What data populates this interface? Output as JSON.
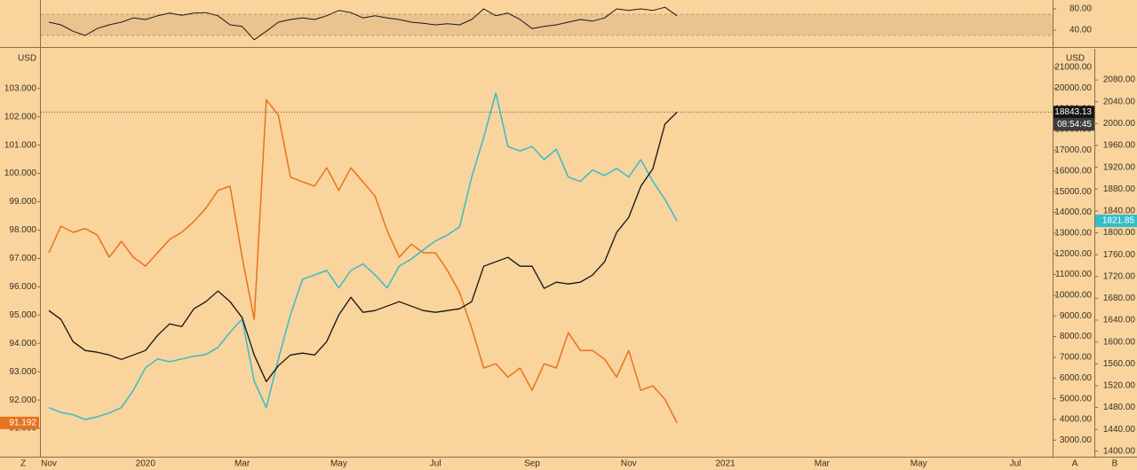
{
  "chart_data": [
    {
      "type": "line",
      "ylim": [
        10,
        96.7
      ],
      "yticks": [
        {
          "value": 40,
          "label": "40.00"
        },
        {
          "value": 80,
          "label": "80.00"
        }
      ],
      "band": [
        30,
        70
      ],
      "color": "#1a1a1a",
      "values": [
        55,
        50,
        38,
        30,
        43,
        50,
        55,
        63,
        60,
        67,
        72,
        68,
        72,
        73,
        67,
        50,
        47,
        22,
        38,
        55,
        60,
        63,
        60,
        67,
        77,
        73,
        63,
        67,
        63,
        60,
        55,
        53,
        50,
        52,
        50,
        60,
        80,
        67,
        72,
        60,
        43,
        47,
        50,
        55,
        60,
        57,
        63,
        80,
        77,
        80,
        77,
        83,
        67,
        null,
        null,
        null,
        null,
        null,
        null,
        null,
        null,
        null,
        null,
        null,
        null,
        null,
        null,
        null,
        null,
        null,
        null,
        null,
        null,
        null,
        null,
        null,
        null,
        null,
        null,
        null,
        null,
        null
      ]
    },
    {
      "type": "line",
      "left_unit": "USD",
      "right_unit": "USD",
      "countdown": "08:54:45",
      "categories": [
        "Nov",
        null,
        null,
        null,
        null,
        null,
        null,
        null,
        "2020",
        null,
        null,
        null,
        null,
        null,
        null,
        null,
        "Mar",
        null,
        null,
        null,
        null,
        null,
        null,
        null,
        "May",
        null,
        null,
        null,
        null,
        null,
        null,
        null,
        "Jul",
        null,
        null,
        null,
        null,
        null,
        null,
        null,
        "Sep",
        null,
        null,
        null,
        null,
        null,
        null,
        null,
        "Nov",
        null,
        null,
        null,
        null,
        null,
        null,
        null,
        "2021",
        null,
        null,
        null,
        null,
        null,
        null,
        null,
        "Mar",
        null,
        null,
        null,
        null,
        null,
        null,
        null,
        "May",
        null,
        null,
        null,
        null,
        null,
        null,
        null,
        "Jul",
        null
      ],
      "ylim": [
        90,
        104.4
      ],
      "yticks": [
        {
          "value": 91,
          "label": "91.000"
        },
        {
          "value": 92,
          "label": "92.000"
        },
        {
          "value": 93,
          "label": "93.000"
        },
        {
          "value": 94,
          "label": "94.000"
        },
        {
          "value": 95,
          "label": "95.000"
        },
        {
          "value": 96,
          "label": "96.000"
        },
        {
          "value": 97,
          "label": "97.000"
        },
        {
          "value": 98,
          "label": "98.000"
        },
        {
          "value": 99,
          "label": "99.000"
        },
        {
          "value": 100,
          "label": "100.000"
        },
        {
          "value": 101,
          "label": "101.000"
        },
        {
          "value": 102,
          "label": "102.000"
        },
        {
          "value": 103,
          "label": "103.000"
        }
      ],
      "y2lim": [
        2200,
        21900
      ],
      "y2ticks": [
        {
          "value": 3000,
          "label": "3000.00"
        },
        {
          "value": 4000,
          "label": "4000.00"
        },
        {
          "value": 5000,
          "label": "5000.00"
        },
        {
          "value": 6000,
          "label": "6000.00"
        },
        {
          "value": 7000,
          "label": "7000.00"
        },
        {
          "value": 8000,
          "label": "8000.00"
        },
        {
          "value": 9000,
          "label": "9000.00"
        },
        {
          "value": 10000,
          "label": "10000.00"
        },
        {
          "value": 11000,
          "label": "11000.00"
        },
        {
          "value": 12000,
          "label": "12000.00"
        },
        {
          "value": 13000,
          "label": "13000.00"
        },
        {
          "value": 14000,
          "label": "14000.00"
        },
        {
          "value": 15000,
          "label": "15000.00"
        },
        {
          "value": 16000,
          "label": "16000.00"
        },
        {
          "value": 17000,
          "label": "17000.00"
        },
        {
          "value": 18000,
          "label": "18000.00"
        },
        {
          "value": 19000,
          "label": "19000.00"
        },
        {
          "value": 20000,
          "label": "20000.00"
        },
        {
          "value": 21000,
          "label": "21000.00"
        }
      ],
      "y3lim": [
        1390,
        2137
      ],
      "y3ticks": [
        {
          "value": 1400,
          "label": "1400.00"
        },
        {
          "value": 1440,
          "label": "1440.00"
        },
        {
          "value": 1480,
          "label": "1480.00"
        },
        {
          "value": 1520,
          "label": "1520.00"
        },
        {
          "value": 1560,
          "label": "1560.00"
        },
        {
          "value": 1600,
          "label": "1600.00"
        },
        {
          "value": 1640,
          "label": "1640.00"
        },
        {
          "value": 1680,
          "label": "1680.00"
        },
        {
          "value": 1720,
          "label": "1720.00"
        },
        {
          "value": 1760,
          "label": "1760.00"
        },
        {
          "value": 1800,
          "label": "1800.00"
        },
        {
          "value": 1840,
          "label": "1840.00"
        },
        {
          "value": 1880,
          "label": "1880.00"
        },
        {
          "value": 1920,
          "label": "1920.00"
        },
        {
          "value": 1960,
          "label": "1960.00"
        },
        {
          "value": 2000,
          "label": "2000.00"
        },
        {
          "value": 2040,
          "label": "2040.00"
        },
        {
          "value": 2080,
          "label": "2080.00"
        }
      ],
      "series": [
        {
          "color": "#e8721d",
          "axis": "y",
          "values": [
            97.2,
            98.14,
            97.92,
            98.05,
            97.83,
            97.04,
            97.6,
            97.04,
            96.73,
            97.2,
            97.67,
            97.92,
            98.3,
            98.77,
            99.4,
            99.55,
            97.04,
            94.85,
            102.6,
            102.06,
            99.87,
            99.7,
            99.55,
            100.2,
            99.4,
            100.2,
            99.7,
            99.2,
            97.98,
            97.04,
            97.5,
            97.2,
            97.2,
            96.57,
            95.8,
            94.54,
            93.13,
            93.28,
            92.81,
            93.13,
            92.34,
            93.28,
            93.13,
            94.38,
            93.75,
            93.75,
            93.44,
            92.81,
            93.75,
            92.34,
            92.5,
            92.03,
            91.192,
            null,
            null,
            null,
            null,
            null,
            null,
            null,
            null,
            null,
            null,
            null,
            null,
            null,
            null,
            null,
            null,
            null,
            null,
            null,
            null,
            null,
            null,
            null,
            null,
            null,
            null,
            null,
            null,
            null
          ]
        },
        {
          "color": "#37bcc8",
          "axis": "y3",
          "values": [
            1480,
            1471,
            1467,
            1458,
            1463,
            1470,
            1480,
            1512,
            1553,
            1569,
            1564,
            1569,
            1574,
            1577,
            1590,
            1618,
            1642,
            1528,
            1480,
            1569,
            1650,
            1715,
            1723,
            1731,
            1699,
            1731,
            1743,
            1723,
            1699,
            1739,
            1752,
            1769,
            1785,
            1796,
            1811,
            1902,
            1975,
            2056,
            1958,
            1950,
            1958,
            1934,
            1953,
            1902,
            1894,
            1915,
            1905,
            1918,
            1902,
            1934,
            1894,
            1861,
            1821.85,
            null,
            null,
            null,
            null,
            null,
            null,
            null,
            null,
            null,
            null,
            null,
            null,
            null,
            null,
            null,
            null,
            null,
            null,
            null,
            null,
            null,
            null,
            null,
            null,
            null,
            null,
            null,
            null,
            null
          ]
        },
        {
          "color": "#141414",
          "axis": "y2",
          "values": [
            9258,
            8829,
            7757,
            7329,
            7243,
            7114,
            6900,
            7114,
            7329,
            8057,
            8615,
            8486,
            9343,
            9686,
            10200,
            9686,
            8915,
            7114,
            5829,
            6600,
            7114,
            7200,
            7114,
            7757,
            9043,
            9900,
            9172,
            9258,
            9472,
            9686,
            9472,
            9258,
            9172,
            9258,
            9343,
            9686,
            11400,
            11615,
            11829,
            11400,
            11400,
            10329,
            10629,
            10543,
            10629,
            10972,
            11615,
            13029,
            13758,
            15258,
            16115,
            18258,
            18843.13,
            null,
            null,
            null,
            null,
            null,
            null,
            null,
            null,
            null,
            null,
            null,
            null,
            null,
            null,
            null,
            null,
            null,
            null,
            null,
            null,
            null,
            null,
            null,
            null,
            null,
            null,
            null,
            null,
            null
          ]
        }
      ]
    },
    {
      "type": "buttons",
      "labels": [
        "Z",
        "A",
        "B"
      ]
    }
  ]
}
